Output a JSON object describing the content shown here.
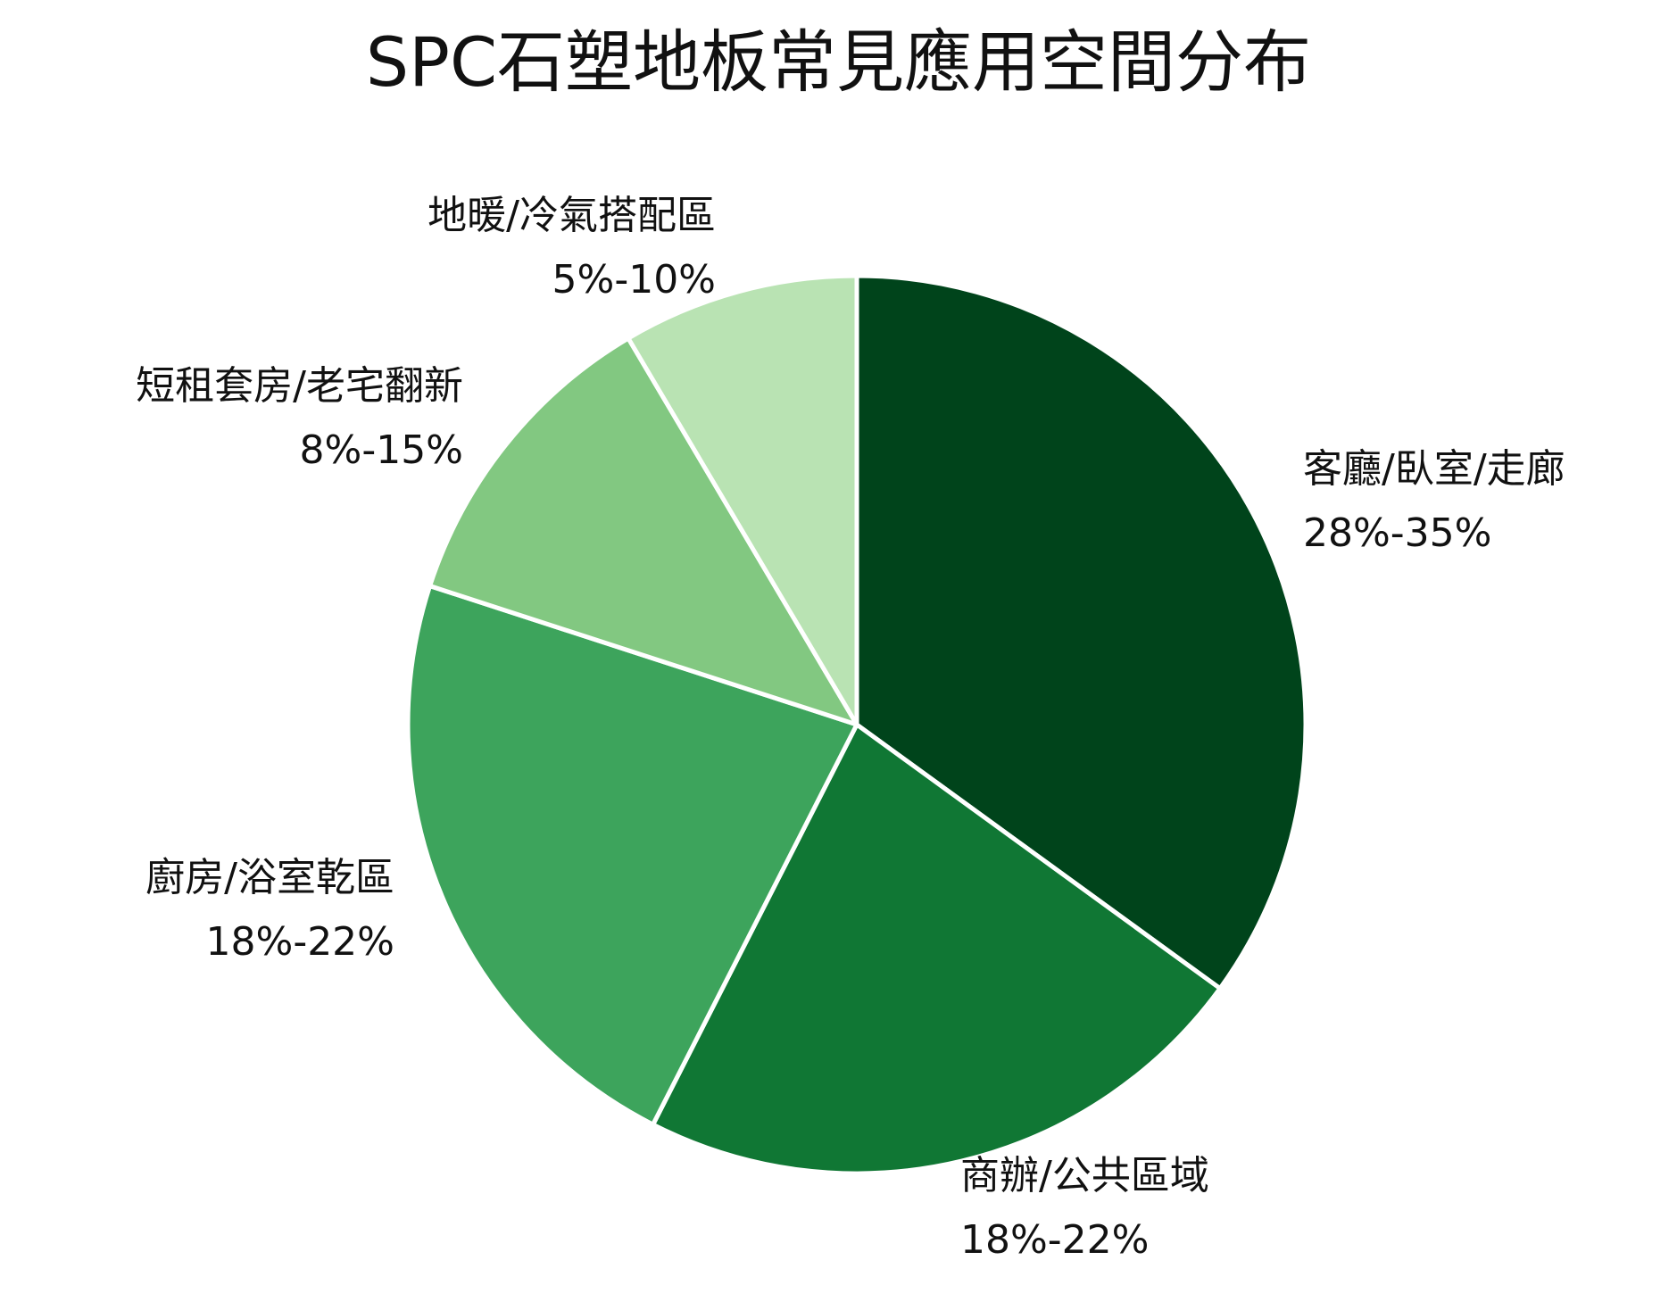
{
  "chart_data": {
    "type": "pie",
    "title": "SPC石塑地板常見應用空間分布",
    "slices": [
      {
        "label": "客廳/臥室/走廊",
        "range": "28%-35%",
        "value": 35.0,
        "color": "#00441b"
      },
      {
        "label": "商辦/公共區域",
        "range": "18%-22%",
        "value": 22.5,
        "color": "#107734"
      },
      {
        "label": "廚房/浴室乾區",
        "range": "18%-22%",
        "value": 22.5,
        "color": "#3da45c"
      },
      {
        "label": "短租套房/老宅翻新",
        "range": "8%-15%",
        "value": 11.5,
        "color": "#82c881"
      },
      {
        "label": "地暖/冷氣搭配區",
        "range": "5%-10%",
        "value": 8.5,
        "color": "#b9e3b3"
      }
    ],
    "start": "12 o'clock",
    "direction": "clockwise",
    "labels_position": "outside"
  }
}
